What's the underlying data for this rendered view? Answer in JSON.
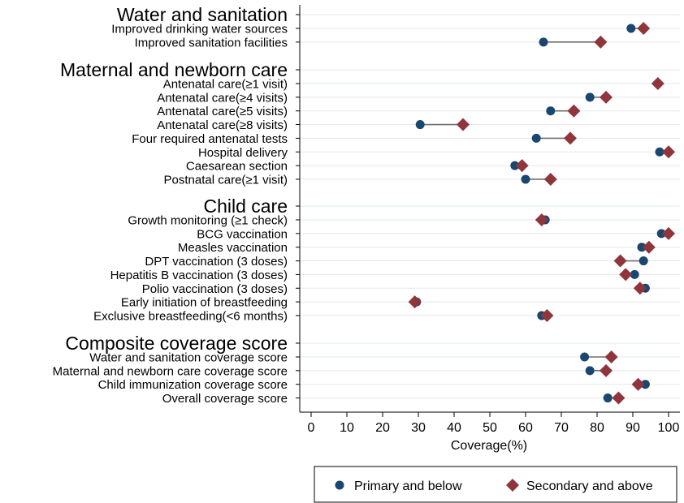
{
  "chart_data": {
    "type": "dot-dumbbell",
    "xlabel": "Coverage(%)",
    "xlim": [
      0,
      100
    ],
    "xticks": [
      0,
      10,
      20,
      30,
      40,
      50,
      60,
      70,
      80,
      90,
      100
    ],
    "series": [
      {
        "name": "Primary and below",
        "marker": "circle",
        "color": "#1a476f"
      },
      {
        "name": "Secondary and above",
        "marker": "diamond",
        "color": "#90353b"
      }
    ],
    "groups": [
      {
        "title": "Water and sanitation",
        "items": [
          {
            "label": "Improved drinking water sources",
            "primary": 89.5,
            "secondary": 93
          },
          {
            "label": "Improved sanitation facilities",
            "primary": 65,
            "secondary": 81
          }
        ]
      },
      {
        "title": "Maternal and newborn care",
        "items": [
          {
            "label": "Antenatal care(≥1 visit)",
            "primary": 97,
            "secondary": 97
          },
          {
            "label": "Antenatal care(≥4 visits)",
            "primary": 78,
            "secondary": 82.5
          },
          {
            "label": "Antenatal care(≥5 visits)",
            "primary": 67,
            "secondary": 73.5
          },
          {
            "label": "Antenatal care(≥8 visits)",
            "primary": 30.5,
            "secondary": 42.5
          },
          {
            "label": "Four required antenatal tests",
            "primary": 63,
            "secondary": 72.5
          },
          {
            "label": "Hospital delivery",
            "primary": 97.5,
            "secondary": 100
          },
          {
            "label": "Caesarean section",
            "primary": 57,
            "secondary": 59
          },
          {
            "label": "Postnatal care(≥1 visit)",
            "primary": 60,
            "secondary": 67
          }
        ]
      },
      {
        "title": "Child care",
        "items": [
          {
            "label": "Growth monitoring (≥1 check)",
            "primary": 65.5,
            "secondary": 64.5
          },
          {
            "label": "BCG vaccination",
            "primary": 98,
            "secondary": 100
          },
          {
            "label": "Measles vaccination",
            "primary": 92.5,
            "secondary": 94.5
          },
          {
            "label": "DPT vaccination (3 doses)",
            "primary": 93,
            "secondary": 86.5
          },
          {
            "label": "Hepatitis B vaccination (3 doses)",
            "primary": 90.5,
            "secondary": 88
          },
          {
            "label": "Polio vaccination (3 doses)",
            "primary": 93.5,
            "secondary": 92
          },
          {
            "label": "Early initiation of breastfeeding",
            "primary": 29.5,
            "secondary": 29
          },
          {
            "label": "Exclusive breastfeeding(<6 months)",
            "primary": 64.5,
            "secondary": 66
          }
        ]
      },
      {
        "title": "Composite coverage score",
        "items": [
          {
            "label": "Water and sanitation coverage score",
            "primary": 76.5,
            "secondary": 84
          },
          {
            "label": "Maternal and newborn care coverage score",
            "primary": 78,
            "secondary": 82.5
          },
          {
            "label": "Child immunization coverage score",
            "primary": 93.5,
            "secondary": 91.5
          },
          {
            "label": "Overall coverage score",
            "primary": 83,
            "secondary": 86
          }
        ]
      }
    ]
  }
}
